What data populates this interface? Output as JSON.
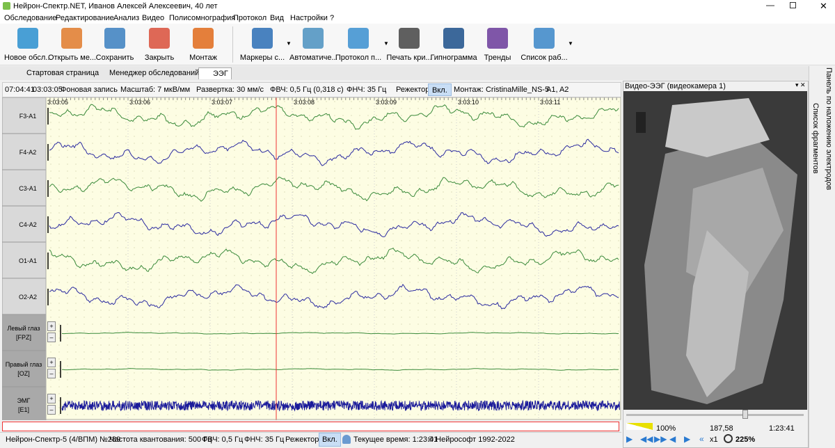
{
  "title_bar": {
    "title": "Нейрон-Спектр.NET, Иванов Алексей Алексеевич, 40 лет"
  },
  "menu": [
    "Обследование",
    "Редактирование",
    "Анализ",
    "Видео",
    "Полисомнография",
    "Протокол",
    "Вид",
    "Настройки",
    "?"
  ],
  "toolbar": [
    "Новое обсл...",
    "Открыть ме...",
    "Сохранить",
    "Закрыть",
    "Монтаж",
    "Маркеры с...",
    "Автоматиче...",
    "Протокол п...",
    "Печать кри...",
    "Гипнограмма",
    "Тренды",
    "Список раб..."
  ],
  "tabs": [
    "Стартовая страница",
    "Менеджер обследований",
    "ЭЭГ"
  ],
  "eeg_toolbar": {
    "clock": "07:04:41",
    "position": "03:03:05",
    "mode": "Фоновая запись",
    "scale": "Масштаб: 7 мкВ/мм",
    "sweep": "Развертка: 30 мм/с",
    "hpf": "ФВЧ: 0,5 Гц (0,318 с)",
    "lpf": "ФНЧ: 35 Гц",
    "notch": "Режектор:",
    "notch_state": "Вкл.",
    "montage": "Монтаж: CristinaMille_NS-5",
    "reference": "A1, A2"
  },
  "time_marks": [
    "3:03:05",
    "3:03:06",
    "3:03:07",
    "3:03:08",
    "3:03:09",
    "3:03:10",
    "3:03:11"
  ],
  "channels": [
    [
      "F3-A1"
    ],
    [
      "F4-A2"
    ],
    [
      "C3-A1"
    ],
    [
      "C4-A2"
    ],
    [
      "O1-A1"
    ],
    [
      "O2-A2"
    ],
    [
      "Левый глаз",
      "[FPZ]"
    ],
    [
      "Правый глаз",
      "[OZ]"
    ],
    [
      "ЭМГ",
      "[E1]"
    ]
  ],
  "gain_buttons": [
    "+",
    "–"
  ],
  "video": {
    "title": "Видео-ЭЭГ  (видеокамера 1)",
    "brightness": "100%",
    "frame": "187,58",
    "time": "1:23:41",
    "speed": "x1",
    "zoom": "225%"
  },
  "side_tabs": [
    "Список фрагментов",
    "Панель по наложению электродов"
  ],
  "status_bar": [
    "Нейрон-Спектр-5 (4/ВПМ) №289",
    "Частота квантования: 500 Гц",
    "ФВЧ: 0,5 Гц",
    "ФНЧ: 35 Гц",
    "Режектор:",
    "Вкл.",
    "Текущее время: 1:23:41",
    "© Нейрософт 1992-2022"
  ]
}
